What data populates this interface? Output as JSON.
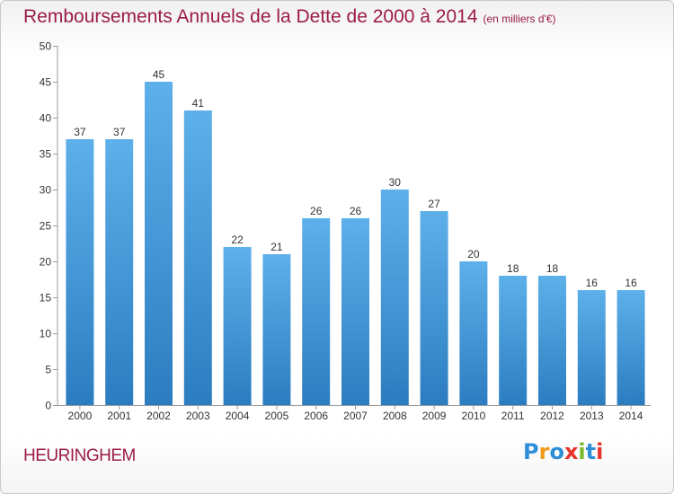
{
  "title": "Remboursements Annuels de la Dette de 2000 à 2014",
  "subtitle": "(en milliers d'€)",
  "commune": "HEURINGHEM",
  "logo": {
    "text": "Proxiti",
    "letters": [
      "P",
      "r",
      "o",
      "x",
      "i",
      "t",
      "i"
    ],
    "letter_colors": [
      "#2f8fd6",
      "#f29a1c",
      "#2f8fd6",
      "#e8332a",
      "#7ab929",
      "#2f8fd6",
      "#e8332a"
    ]
  },
  "chart_data": {
    "type": "bar",
    "title": "Remboursements Annuels de la Dette de 2000 à 2014",
    "subtitle": "(en milliers d'€)",
    "categories": [
      "2000",
      "2001",
      "2002",
      "2003",
      "2004",
      "2005",
      "2006",
      "2007",
      "2008",
      "2009",
      "2010",
      "2011",
      "2012",
      "2013",
      "2014"
    ],
    "values": [
      37,
      37,
      45,
      41,
      22,
      21,
      26,
      26,
      30,
      27,
      20,
      18,
      18,
      16,
      16
    ],
    "ylim": [
      0,
      50
    ],
    "yticks": [
      0,
      5,
      10,
      15,
      20,
      25,
      30,
      35,
      40,
      45,
      50
    ],
    "grid": false,
    "bar_color_top": "#5eb0ea",
    "bar_color_bottom": "#2b7dc0",
    "xlabel": "",
    "ylabel": ""
  }
}
